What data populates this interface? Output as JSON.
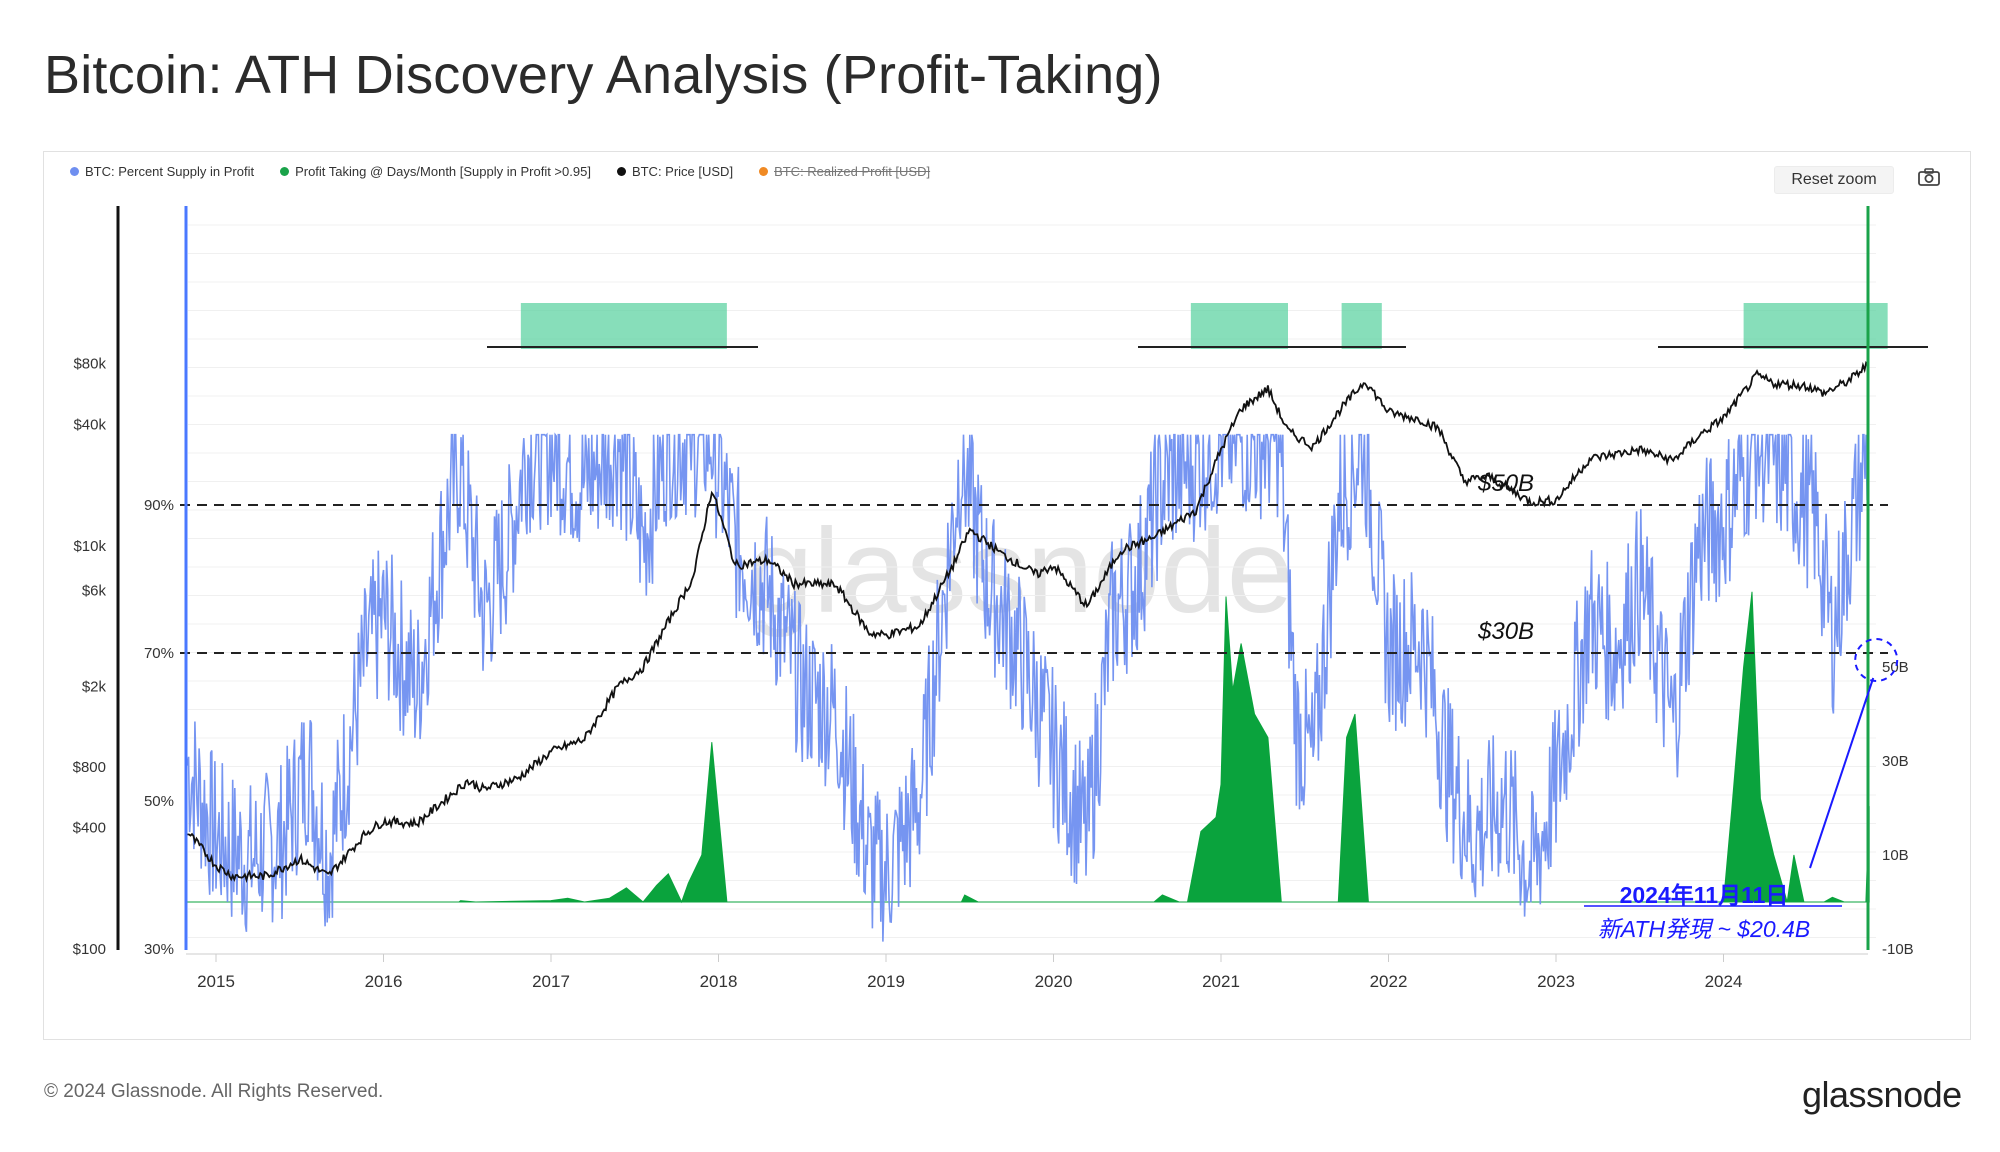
{
  "title": "Bitcoin: ATH Discovery Analysis (Profit-Taking)",
  "legend": [
    {
      "label": "BTC: Percent Supply in Profit",
      "color": "#6f8ff0",
      "struck": false
    },
    {
      "label": "Profit Taking @ Days/Month [Supply in Profit >0.95]",
      "color": "#1aa34a",
      "struck": false
    },
    {
      "label": "BTC: Price [USD]",
      "color": "#111111",
      "struck": false
    },
    {
      "label": "BTC: Realized Profit [USD]",
      "color": "#f08a24",
      "struck": true
    }
  ],
  "reset_zoom": "Reset zoom",
  "camera_icon": "camera-icon",
  "footer": {
    "copyright": "© 2024 Glassnode. All Rights Reserved.",
    "logo": "glassnode"
  },
  "watermark": "glassnode",
  "annotations": {
    "level_50b": "$50B",
    "level_30b": "$30B",
    "ath_date": "2024年11月11日",
    "ath_note": "新ATH発現 ~ $20.4B"
  },
  "colors": {
    "supply": "#6f8ff0",
    "profit": "#0aa33d",
    "price": "#111111",
    "highlight": "#5fd3a3",
    "accent_blue": "#1a1aff",
    "axis_left_line": "#4a78ff",
    "axis_right_line": "#1aa34a"
  },
  "chart_data": {
    "type": "line",
    "x_ticks": [
      "2015",
      "2016",
      "2017",
      "2018",
      "2019",
      "2020",
      "2021",
      "2022",
      "2023",
      "2024"
    ],
    "price_axis": {
      "scale": "log",
      "ticks": [
        "$100",
        "$400",
        "$800",
        "$2k",
        "$6k",
        "$10k",
        "$40k",
        "$80k"
      ]
    },
    "supply_axis": {
      "ticks": [
        "30%",
        "50%",
        "70%",
        "90%"
      ],
      "ylim": [
        30,
        100
      ]
    },
    "profit_axis": {
      "ticks": [
        "-10B",
        "10B",
        "30B",
        "50B"
      ],
      "ylim": [
        -10,
        70
      ]
    },
    "reference_lines": [
      {
        "label": "$50B",
        "supply_level": 90
      },
      {
        "label": "$30B",
        "supply_level": 70
      }
    ],
    "series": [
      {
        "name": "BTC: Price [USD]",
        "axis": "price",
        "points": [
          [
            2014.83,
            380
          ],
          [
            2015.0,
            260
          ],
          [
            2015.1,
            230
          ],
          [
            2015.3,
            230
          ],
          [
            2015.5,
            280
          ],
          [
            2015.67,
            230
          ],
          [
            2015.9,
            380
          ],
          [
            2016.0,
            430
          ],
          [
            2016.2,
            420
          ],
          [
            2016.4,
            580
          ],
          [
            2016.5,
            680
          ],
          [
            2016.6,
            620
          ],
          [
            2016.8,
            700
          ],
          [
            2017.0,
            950
          ],
          [
            2017.2,
            1100
          ],
          [
            2017.4,
            2000
          ],
          [
            2017.55,
            2500
          ],
          [
            2017.7,
            4200
          ],
          [
            2017.85,
            7000
          ],
          [
            2017.96,
            19000
          ],
          [
            2018.05,
            11000
          ],
          [
            2018.1,
            8000
          ],
          [
            2018.3,
            8500
          ],
          [
            2018.45,
            6500
          ],
          [
            2018.7,
            6400
          ],
          [
            2018.9,
            3700
          ],
          [
            2019.0,
            3600
          ],
          [
            2019.2,
            4000
          ],
          [
            2019.4,
            8000
          ],
          [
            2019.5,
            12000
          ],
          [
            2019.7,
            9000
          ],
          [
            2019.9,
            7200
          ],
          [
            2020.0,
            8000
          ],
          [
            2020.2,
            5000
          ],
          [
            2020.4,
            9500
          ],
          [
            2020.6,
            11000
          ],
          [
            2020.85,
            15000
          ],
          [
            2021.0,
            30000
          ],
          [
            2021.12,
            48000
          ],
          [
            2021.28,
            60000
          ],
          [
            2021.4,
            37000
          ],
          [
            2021.55,
            31000
          ],
          [
            2021.7,
            46000
          ],
          [
            2021.86,
            66000
          ],
          [
            2022.0,
            46000
          ],
          [
            2022.2,
            42000
          ],
          [
            2022.3,
            38000
          ],
          [
            2022.45,
            21000
          ],
          [
            2022.6,
            22000
          ],
          [
            2022.85,
            16500
          ],
          [
            2023.0,
            16800
          ],
          [
            2023.2,
            27000
          ],
          [
            2023.5,
            30000
          ],
          [
            2023.7,
            26500
          ],
          [
            2023.85,
            35000
          ],
          [
            2024.0,
            43000
          ],
          [
            2024.2,
            70000
          ],
          [
            2024.3,
            64000
          ],
          [
            2024.5,
            62000
          ],
          [
            2024.6,
            57000
          ],
          [
            2024.75,
            66000
          ],
          [
            2024.87,
            80000
          ]
        ]
      },
      {
        "name": "BTC: Percent Supply in Profit",
        "axis": "supply",
        "points": [
          [
            2014.83,
            55
          ],
          [
            2015.0,
            45
          ],
          [
            2015.2,
            42
          ],
          [
            2015.4,
            45
          ],
          [
            2015.55,
            55
          ],
          [
            2015.67,
            42
          ],
          [
            2015.9,
            70
          ],
          [
            2016.0,
            75
          ],
          [
            2016.2,
            65
          ],
          [
            2016.35,
            85
          ],
          [
            2016.45,
            96
          ],
          [
            2016.6,
            75
          ],
          [
            2016.75,
            85
          ],
          [
            2016.85,
            97
          ],
          [
            2017.0,
            98
          ],
          [
            2017.2,
            93
          ],
          [
            2017.4,
            99
          ],
          [
            2017.55,
            85
          ],
          [
            2017.7,
            99
          ],
          [
            2017.96,
            99
          ],
          [
            2018.1,
            85
          ],
          [
            2018.3,
            78
          ],
          [
            2018.5,
            65
          ],
          [
            2018.7,
            62
          ],
          [
            2018.9,
            42
          ],
          [
            2019.0,
            40
          ],
          [
            2019.2,
            50
          ],
          [
            2019.45,
            97
          ],
          [
            2019.6,
            80
          ],
          [
            2019.8,
            70
          ],
          [
            2019.95,
            60
          ],
          [
            2020.2,
            45
          ],
          [
            2020.35,
            75
          ],
          [
            2020.5,
            80
          ],
          [
            2020.65,
            93
          ],
          [
            2020.85,
            96
          ],
          [
            2021.0,
            99
          ],
          [
            2021.2,
            99
          ],
          [
            2021.35,
            99
          ],
          [
            2021.45,
            60
          ],
          [
            2021.55,
            55
          ],
          [
            2021.7,
            90
          ],
          [
            2021.85,
            99
          ],
          [
            2022.0,
            70
          ],
          [
            2022.2,
            72
          ],
          [
            2022.35,
            55
          ],
          [
            2022.5,
            45
          ],
          [
            2022.7,
            50
          ],
          [
            2022.85,
            40
          ],
          [
            2023.0,
            52
          ],
          [
            2023.2,
            75
          ],
          [
            2023.35,
            70
          ],
          [
            2023.5,
            80
          ],
          [
            2023.7,
            60
          ],
          [
            2023.85,
            85
          ],
          [
            2024.0,
            88
          ],
          [
            2024.2,
            99
          ],
          [
            2024.35,
            95
          ],
          [
            2024.55,
            88
          ],
          [
            2024.65,
            72
          ],
          [
            2024.75,
            85
          ],
          [
            2024.87,
            99
          ]
        ]
      },
      {
        "name": "Profit Taking @ Days/Month [Supply in Profit >0.95]",
        "axis": "profit",
        "points": [
          [
            2014.83,
            0
          ],
          [
            2016.45,
            0
          ],
          [
            2016.46,
            0.3
          ],
          [
            2016.55,
            0
          ],
          [
            2017.0,
            0.3
          ],
          [
            2017.1,
            0.8
          ],
          [
            2017.2,
            0
          ],
          [
            2017.35,
            0.8
          ],
          [
            2017.45,
            3
          ],
          [
            2017.55,
            0
          ],
          [
            2017.63,
            3.5
          ],
          [
            2017.7,
            6
          ],
          [
            2017.78,
            0
          ],
          [
            2017.82,
            4
          ],
          [
            2017.9,
            10
          ],
          [
            2017.96,
            34
          ],
          [
            2018.05,
            0
          ],
          [
            2019.45,
            0
          ],
          [
            2019.47,
            1.5
          ],
          [
            2019.55,
            0
          ],
          [
            2020.6,
            0
          ],
          [
            2020.65,
            1.5
          ],
          [
            2020.75,
            0
          ],
          [
            2020.8,
            0
          ],
          [
            2020.88,
            15
          ],
          [
            2020.97,
            18
          ],
          [
            2021.0,
            25
          ],
          [
            2021.03,
            65
          ],
          [
            2021.07,
            45
          ],
          [
            2021.12,
            55
          ],
          [
            2021.2,
            40
          ],
          [
            2021.28,
            35
          ],
          [
            2021.36,
            0
          ],
          [
            2021.7,
            0
          ],
          [
            2021.75,
            35
          ],
          [
            2021.8,
            40
          ],
          [
            2021.88,
            0
          ],
          [
            2024.0,
            0
          ],
          [
            2024.05,
            20
          ],
          [
            2024.12,
            50
          ],
          [
            2024.17,
            66
          ],
          [
            2024.22,
            22
          ],
          [
            2024.3,
            10
          ],
          [
            2024.38,
            0
          ],
          [
            2024.42,
            10
          ],
          [
            2024.48,
            0
          ],
          [
            2024.6,
            0
          ],
          [
            2024.65,
            1
          ],
          [
            2024.72,
            0
          ],
          [
            2024.85,
            0
          ],
          [
            2024.87,
            20.4
          ]
        ]
      }
    ],
    "highlights": [
      {
        "from": 2016.82,
        "to": 2018.05
      },
      {
        "from": 2020.82,
        "to": 2021.4
      },
      {
        "from": 2021.72,
        "to": 2021.96
      },
      {
        "from": 2024.12,
        "to": 2024.98
      }
    ],
    "ath_marker": {
      "x": 2024.87,
      "value": 20.4
    }
  }
}
